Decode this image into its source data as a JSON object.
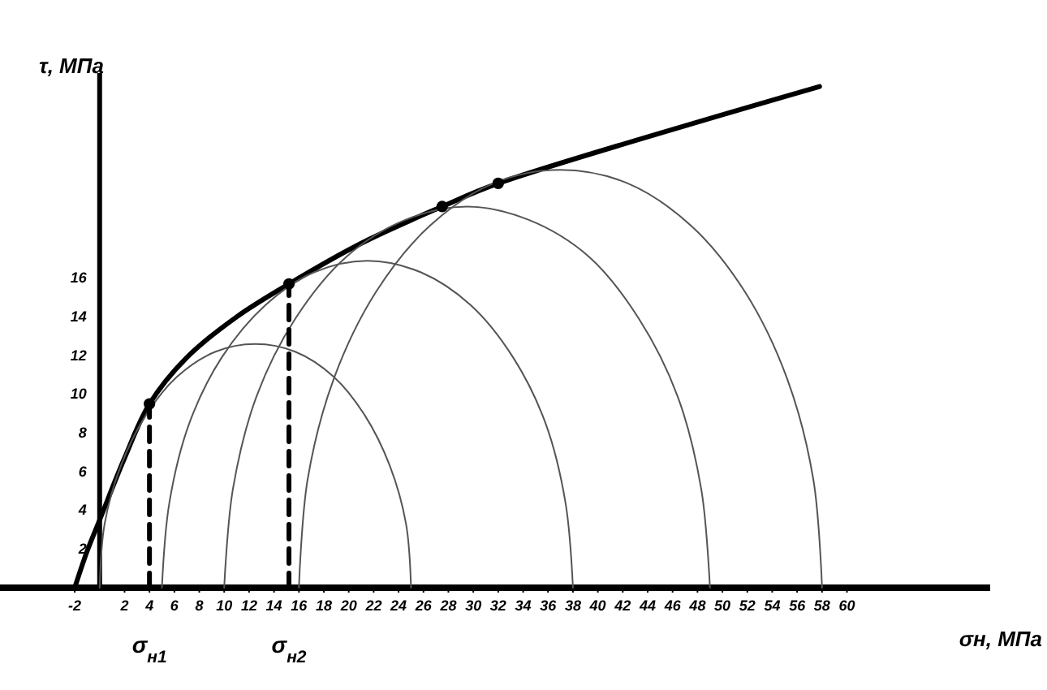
{
  "chart_data": {
    "type": "line",
    "xlabel": "σн, МПа",
    "ylabel": "τ, МПа",
    "xlim": [
      -8,
      71.5
    ],
    "ylim": [
      0,
      26.6
    ],
    "xticks": [
      -2,
      2,
      4,
      6,
      8,
      10,
      12,
      14,
      16,
      18,
      20,
      22,
      24,
      26,
      28,
      30,
      32,
      34,
      36,
      38,
      40,
      42,
      44,
      46,
      48,
      50,
      52,
      54,
      56,
      58,
      60
    ],
    "yticks": [
      2,
      4,
      6,
      8,
      10,
      12,
      14,
      16
    ],
    "grid": false,
    "series": [
      {
        "color": "#000000",
        "x": [
          -2,
          -1,
          0,
          2,
          4,
          7,
          11,
          15.2,
          21,
          27.5,
          32,
          57.8
        ],
        "values": [
          0,
          1.9,
          3.5,
          6.7,
          9.5,
          11.9,
          14,
          15.7,
          17.8,
          19.7,
          20.9,
          25.9
        ]
      },
      {
        "color": "#555555",
        "x": [
          25,
          24.6,
          23.3,
          21.3,
          18.8,
          15.7,
          12.5,
          9.3,
          6.2,
          3.7,
          1.7,
          0.4,
          0
        ],
        "values": [
          0,
          3.3,
          6.3,
          8.9,
          10.9,
          12.2,
          12.6,
          12.2,
          10.9,
          8.9,
          6.3,
          3.3,
          0
        ]
      },
      {
        "color": "#555555",
        "x": [
          38,
          37.4,
          35.8,
          33.2,
          29.8,
          25.8,
          21.5,
          17.2,
          13.3,
          9.8,
          7.2,
          5.6,
          5
        ],
        "values": [
          0,
          4.4,
          8.5,
          11.9,
          14.6,
          16.3,
          16.9,
          16.3,
          14.6,
          11.9,
          8.5,
          4.4,
          0
        ]
      },
      {
        "color": "#555555",
        "x": [
          49,
          48.3,
          46.4,
          43.3,
          39.3,
          34.5,
          29.5,
          24.5,
          19.8,
          15.7,
          12.6,
          10.7,
          10
        ],
        "values": [
          0,
          5.1,
          9.9,
          13.9,
          17.1,
          19,
          19.7,
          19,
          17.1,
          13.9,
          9.9,
          5.1,
          0
        ]
      },
      {
        "color": "#555555",
        "x": [
          58,
          57.3,
          55.2,
          51.8,
          47.5,
          42.4,
          37,
          31.6,
          26.5,
          22.2,
          18.8,
          16.7,
          16
        ],
        "values": [
          0,
          5.6,
          10.8,
          15.3,
          18.7,
          20.9,
          21.6,
          20.9,
          18.7,
          15.3,
          10.8,
          5.6,
          0
        ]
      },
      {
        "color": "#000000",
        "line_style": "dashed",
        "x": [
          4,
          4
        ],
        "values": [
          0,
          9.5
        ]
      },
      {
        "color": "#000000",
        "line_style": "dashed",
        "x": [
          15.2,
          15.2
        ],
        "values": [
          0,
          15.7
        ]
      },
      {
        "type": "scatter",
        "marker": "circle",
        "color": "#000000",
        "x": [
          4,
          15.2,
          27.5,
          32
        ],
        "values": [
          9.5,
          15.7,
          19.7,
          20.9
        ]
      }
    ],
    "annotations": [
      {
        "text": "σ$_{н1}$",
        "x": 4,
        "y": 0
      },
      {
        "text": "σ$_{н2}$",
        "x": 15.2,
        "y": 0
      }
    ]
  }
}
